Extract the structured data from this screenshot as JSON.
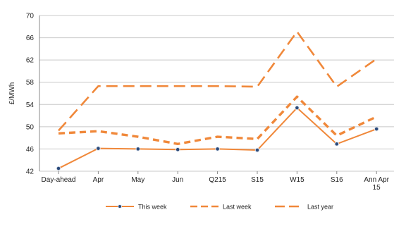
{
  "chart_data": {
    "type": "line",
    "categories": [
      "Day-ahead",
      "Apr",
      "May",
      "Jun",
      "Q215",
      "S15",
      "W15",
      "S16",
      "Ann Apr 15"
    ],
    "category_lines": [
      [
        "Day-ahead"
      ],
      [
        "Apr"
      ],
      [
        "May"
      ],
      [
        "Jun"
      ],
      [
        "Q215"
      ],
      [
        "S15"
      ],
      [
        "W15"
      ],
      [
        "S16"
      ],
      [
        "Ann Apr",
        "15"
      ]
    ],
    "ylabel": "£/MWh",
    "ylim": [
      42,
      70
    ],
    "yticks": [
      42,
      46,
      50,
      54,
      58,
      62,
      66,
      70
    ],
    "grid": true,
    "legend_position": "bottom",
    "series": [
      {
        "name": "This week",
        "values": [
          42.5,
          46.1,
          46.0,
          45.9,
          46.0,
          45.8,
          53.4,
          46.9,
          49.6
        ],
        "color": "#F0883A",
        "style": "solid",
        "markers": true
      },
      {
        "name": "Last week",
        "values": [
          48.8,
          49.2,
          48.2,
          46.9,
          48.2,
          47.8,
          55.4,
          48.4,
          51.8
        ],
        "color": "#F0883A",
        "style": "dashed-bold",
        "markers": false
      },
      {
        "name": "Last year",
        "values": [
          49.3,
          57.3,
          57.3,
          57.3,
          57.3,
          57.2,
          67.1,
          57.2,
          62.2
        ],
        "color": "#F0883A",
        "style": "dashed",
        "markers": false
      }
    ]
  }
}
